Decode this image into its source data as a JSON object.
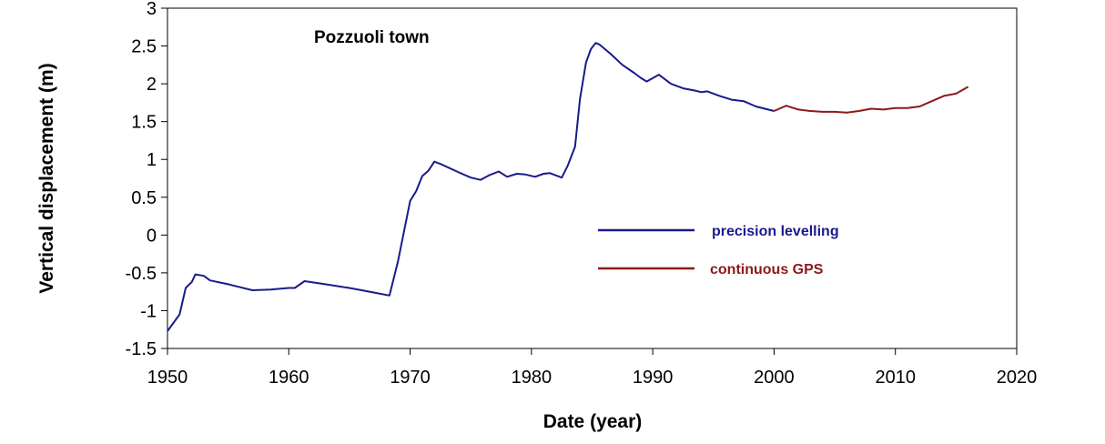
{
  "chart_data": {
    "type": "line",
    "title": "",
    "annotation": "Pozzuoli town",
    "xlabel": "Date (year)",
    "ylabel": "Vertical displacement (m)",
    "xlim": [
      1950,
      2020
    ],
    "ylim": [
      -1.5,
      3
    ],
    "xticks": [
      "1950",
      "1960",
      "1970",
      "1980",
      "1990",
      "2000",
      "2010",
      "2020"
    ],
    "yticks": [
      "3",
      "2.5",
      "2",
      "1.5",
      "1",
      "0.5",
      "0",
      "-0.5",
      "-1",
      "-1.5"
    ],
    "grid": false,
    "legend_position": "center-right",
    "series": [
      {
        "name": "precision levelling",
        "color": "#1a1a8c",
        "x": [
          1950.0,
          1951.0,
          1951.5,
          1952.0,
          1952.3,
          1953.0,
          1953.5,
          1955.0,
          1957.0,
          1958.5,
          1960.0,
          1960.5,
          1961.3,
          1963.0,
          1965.0,
          1967.0,
          1968.3,
          1969.0,
          1970.0,
          1970.5,
          1971.0,
          1971.5,
          1972.0,
          1972.5,
          1974.0,
          1975.0,
          1975.8,
          1976.5,
          1977.3,
          1978.0,
          1978.8,
          1979.5,
          1980.3,
          1981.0,
          1981.5,
          1982.0,
          1982.5,
          1983.0,
          1983.6,
          1984.0,
          1984.5,
          1984.9,
          1985.3,
          1985.6,
          1986.5,
          1987.5,
          1988.5,
          1989.0,
          1989.5,
          1990.5,
          1991.5,
          1992.5,
          1993.5,
          1994.0,
          1994.5,
          1995.5,
          1996.5,
          1997.5,
          1998.5,
          1999.5,
          2000.0
        ],
        "y": [
          -1.27,
          -1.05,
          -0.7,
          -0.62,
          -0.52,
          -0.54,
          -0.6,
          -0.65,
          -0.73,
          -0.72,
          -0.7,
          -0.7,
          -0.61,
          -0.65,
          -0.7,
          -0.76,
          -0.8,
          -0.35,
          0.45,
          0.58,
          0.78,
          0.85,
          0.97,
          0.94,
          0.83,
          0.76,
          0.73,
          0.79,
          0.84,
          0.77,
          0.81,
          0.8,
          0.77,
          0.81,
          0.82,
          0.79,
          0.76,
          0.92,
          1.17,
          1.8,
          2.28,
          2.46,
          2.54,
          2.52,
          2.4,
          2.25,
          2.14,
          2.08,
          2.03,
          2.12,
          2.0,
          1.94,
          1.91,
          1.89,
          1.9,
          1.84,
          1.79,
          1.77,
          1.7,
          1.66,
          1.64
        ]
      },
      {
        "name": "continuous GPS",
        "color": "#8c1a1a",
        "x": [
          2000.0,
          2001.0,
          2002.0,
          2003.0,
          2004.0,
          2005.0,
          2006.0,
          2007.0,
          2008.0,
          2009.0,
          2010.0,
          2011.0,
          2012.0,
          2013.0,
          2014.0,
          2015.0,
          2016.0
        ],
        "y": [
          1.64,
          1.71,
          1.66,
          1.64,
          1.63,
          1.63,
          1.62,
          1.64,
          1.67,
          1.66,
          1.68,
          1.68,
          1.7,
          1.77,
          1.84,
          1.87,
          1.96
        ]
      }
    ]
  }
}
